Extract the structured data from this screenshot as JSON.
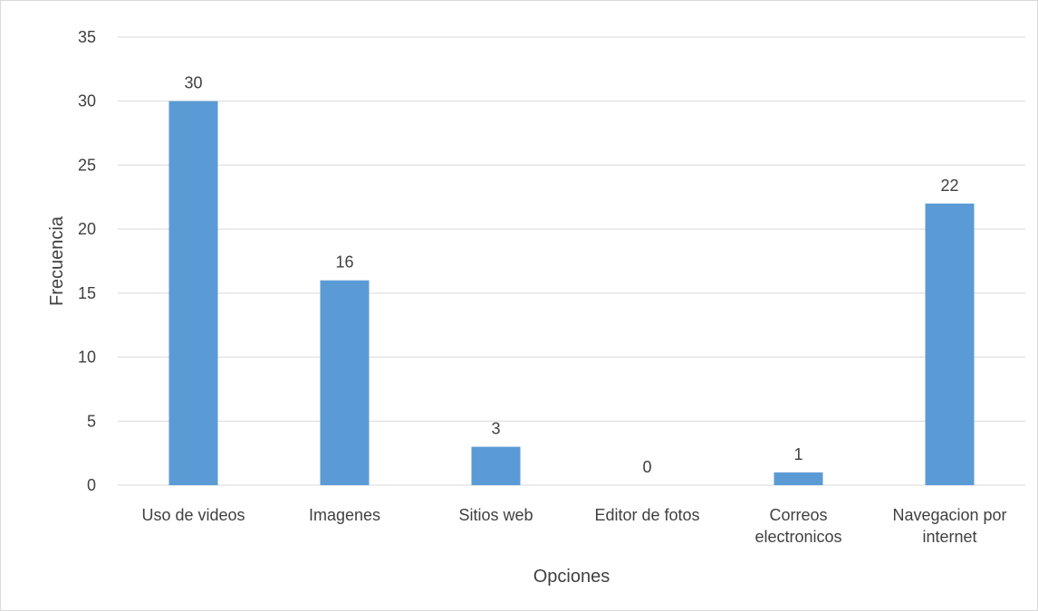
{
  "chart_data": {
    "type": "bar",
    "title": "",
    "categories": [
      [
        "Uso de videos"
      ],
      [
        "Imagenes"
      ],
      [
        "Sitios web"
      ],
      [
        "Editor de fotos"
      ],
      [
        "Correos",
        "electronicos"
      ],
      [
        "Navegacion por",
        "internet"
      ]
    ],
    "values": [
      30,
      16,
      3,
      0,
      1,
      22
    ],
    "data_labels": [
      "30",
      "16",
      "3",
      "0",
      "1",
      "22"
    ],
    "xlabel": "Opciones",
    "ylabel": "Frecuencia",
    "ylim": [
      0,
      35
    ],
    "yticks": [
      0,
      5,
      10,
      15,
      20,
      25,
      30,
      35
    ],
    "grid": true,
    "legend": "none",
    "bar_color": "#5b9bd5",
    "grid_color": "#d9d9d9"
  }
}
